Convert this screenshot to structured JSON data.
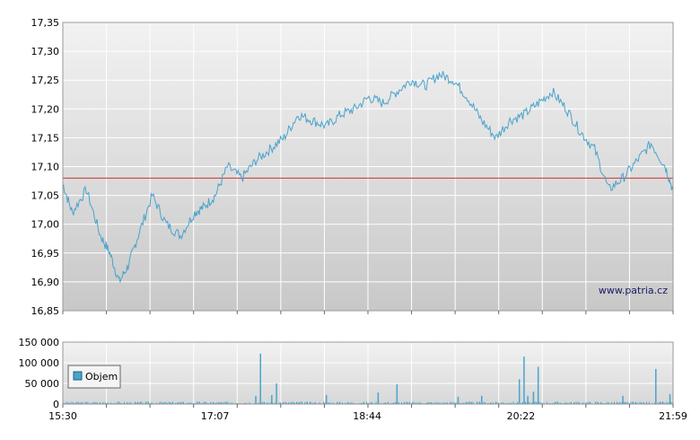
{
  "chart_data": [
    {
      "type": "line",
      "watermark": "www.patria.cz",
      "ylim": [
        16.85,
        17.35
      ],
      "y_ticks": [
        "17,35",
        "17,30",
        "17,25",
        "17,20",
        "17,15",
        "17,10",
        "17,05",
        "17,00",
        "16,95",
        "16,90",
        "16,85"
      ],
      "y_tick_values": [
        17.35,
        17.3,
        17.25,
        17.2,
        17.15,
        17.1,
        17.05,
        17.0,
        16.95,
        16.9,
        16.85
      ],
      "reference_line": 17.08,
      "x_hours": [
        15.5,
        15.6,
        15.75,
        15.9,
        16.0,
        16.1,
        16.2,
        16.3,
        16.45,
        16.6,
        16.75,
        16.9,
        17.0,
        17.12,
        17.25,
        17.4,
        17.55,
        17.7,
        17.85,
        18.0,
        18.15,
        18.3,
        18.45,
        18.6,
        18.75,
        18.9,
        19.05,
        19.2,
        19.35,
        19.5,
        19.65,
        19.8,
        19.95,
        20.1,
        20.25,
        20.4,
        20.55,
        20.7,
        20.85,
        21.0,
        21.15,
        21.3,
        21.45,
        21.6,
        21.75,
        21.9,
        21.98
      ],
      "series": [
        {
          "values": [
            17.07,
            17.02,
            17.06,
            16.98,
            16.95,
            16.9,
            16.93,
            16.98,
            17.05,
            17.0,
            16.98,
            17.02,
            17.03,
            17.05,
            17.1,
            17.08,
            17.11,
            17.13,
            17.15,
            17.19,
            17.18,
            17.17,
            17.19,
            17.2,
            17.22,
            17.21,
            17.23,
            17.25,
            17.24,
            17.26,
            17.25,
            17.22,
            17.18,
            17.15,
            17.18,
            17.19,
            17.21,
            17.23,
            17.2,
            17.16,
            17.13,
            17.06,
            17.08,
            17.11,
            17.14,
            17.1,
            17.06
          ]
        }
      ],
      "colors": {
        "line": "#4aa3cc",
        "reference": "#cc3333",
        "bars": "#4aa3cc"
      }
    },
    {
      "type": "bar",
      "ylim": [
        0,
        150000
      ],
      "y_ticks": [
        "150 000",
        "100 000",
        "50 000",
        "0"
      ],
      "y_tick_values": [
        150000,
        100000,
        50000,
        0
      ],
      "x_ticks": [
        "15:30",
        "17:07",
        "18:44",
        "20:22",
        "21:59"
      ],
      "x_tick_values": [
        15.5,
        17.1167,
        18.7333,
        20.3667,
        21.9833
      ],
      "legend": "Objem",
      "spikes": [
        {
          "t": 17.6,
          "v": 122000
        },
        {
          "t": 17.77,
          "v": 50000
        },
        {
          "t": 17.72,
          "v": 22000
        },
        {
          "t": 17.55,
          "v": 20000
        },
        {
          "t": 18.3,
          "v": 22000
        },
        {
          "t": 18.85,
          "v": 28000
        },
        {
          "t": 19.05,
          "v": 48000
        },
        {
          "t": 19.7,
          "v": 18000
        },
        {
          "t": 19.95,
          "v": 20000
        },
        {
          "t": 20.35,
          "v": 60000
        },
        {
          "t": 20.4,
          "v": 115000
        },
        {
          "t": 20.44,
          "v": 20000
        },
        {
          "t": 20.5,
          "v": 30000
        },
        {
          "t": 20.55,
          "v": 90000
        },
        {
          "t": 21.45,
          "v": 20000
        },
        {
          "t": 21.8,
          "v": 85000
        },
        {
          "t": 21.95,
          "v": 24000
        }
      ],
      "baseline_volume": 4000
    }
  ]
}
